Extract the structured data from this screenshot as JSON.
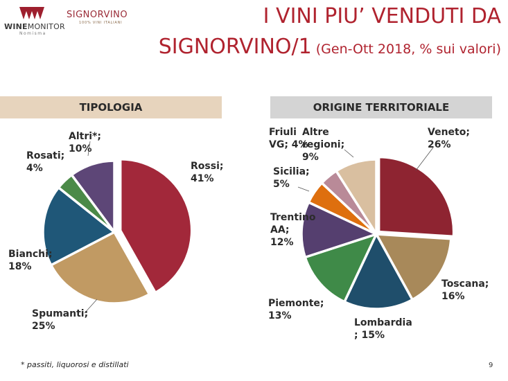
{
  "logos": {
    "winemonitor": {
      "brand": "WINE",
      "brand_rest": "MONITOR",
      "sub": "Nomisma"
    },
    "signorvino": {
      "name": "SIGNORVINO",
      "sub": "100% VINI ITALIANI"
    }
  },
  "header": {
    "title_line1": "I VINI PIU’ VENDUTI DA",
    "title_line2_main": "SIGNORVINO/1",
    "title_line2_paren": " (Gen-Ott 2018, % sui valori)"
  },
  "colors": {
    "title": "#b0232f",
    "head_left_bg": "#e7d4bd",
    "head_right_bg": "#d4d4d4"
  },
  "chart_data": [
    {
      "type": "pie",
      "title": "TIPOLOGIA",
      "slices": [
        {
          "key": "rossi",
          "label_lines": [
            "Rossi;",
            "41%"
          ],
          "value": 41,
          "color": "#a2283a"
        },
        {
          "key": "spumanti",
          "label_lines": [
            "Spumanti;",
            "25%"
          ],
          "value": 25,
          "color": "#c19a63"
        },
        {
          "key": "bianchi",
          "label_lines": [
            "Bianchi;",
            "18%"
          ],
          "value": 18,
          "color": "#1f5778"
        },
        {
          "key": "rosati",
          "label_lines": [
            "Rosati;",
            "4%"
          ],
          "value": 4,
          "color": "#4b8a48"
        },
        {
          "key": "altri",
          "label_lines": [
            "Altri*;",
            "10%"
          ],
          "value": 10,
          "color": "#5d4677"
        }
      ]
    },
    {
      "type": "pie",
      "title": "ORIGINE TERRITORIALE",
      "slices": [
        {
          "key": "veneto",
          "label_lines": [
            "Veneto;",
            "26%"
          ],
          "value": 26,
          "color": "#8e2431"
        },
        {
          "key": "toscana",
          "label_lines": [
            "Toscana;",
            "16%"
          ],
          "value": 16,
          "color": "#a8895a"
        },
        {
          "key": "lombardia",
          "label_lines": [
            "Lombardia",
            "; 15%"
          ],
          "value": 15,
          "color": "#1f4e6b"
        },
        {
          "key": "piemonte",
          "label_lines": [
            "Piemonte;",
            "13%"
          ],
          "value": 13,
          "color": "#3f8a48"
        },
        {
          "key": "trentino",
          "label_lines": [
            "Trentino",
            "AA;",
            "12%"
          ],
          "value": 12,
          "color": "#553f6f"
        },
        {
          "key": "sicilia",
          "label_lines": [
            "Sicilia;",
            "5%"
          ],
          "value": 5,
          "color": "#de6f0e"
        },
        {
          "key": "friuli",
          "label_lines": [
            "Friuli",
            "VG; 4%"
          ],
          "value": 4,
          "color": "#b98a98"
        },
        {
          "key": "altre",
          "label_lines": [
            "Altre",
            "regioni;",
            "9%"
          ],
          "value": 9,
          "color": "#d9bfa0"
        }
      ]
    }
  ],
  "footnote": "* passiti, liquorosi e distillati",
  "page_number": "9"
}
